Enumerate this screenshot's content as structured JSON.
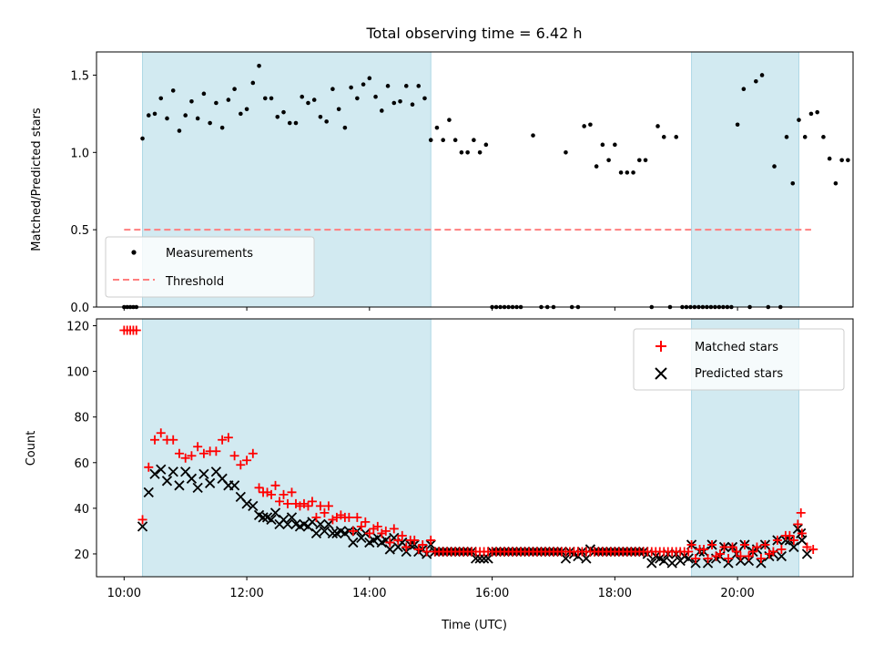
{
  "figure": {
    "title": "Total observing time = 6.42 h"
  },
  "chart_data": [
    {
      "type": "scatter",
      "ylabel": "Matched/Predicted stars",
      "xlabel": "",
      "xlim": [
        "09:33",
        "21:53"
      ],
      "ylim": [
        0,
        1.65
      ],
      "yticks": [
        0.0,
        0.5,
        1.0,
        1.5
      ],
      "ytick_labels": [
        "0.0",
        "0.5",
        "1.0",
        "1.5"
      ],
      "shaded_intervals": [
        [
          "10:18",
          "15:00"
        ],
        [
          "19:15",
          "21:00"
        ]
      ],
      "shade_color": "#add8e6",
      "legend": {
        "position": "lower-left",
        "entries": [
          "Measurements",
          "Threshold"
        ]
      },
      "threshold": {
        "name": "Threshold",
        "value": 0.5,
        "x_start": "10:00",
        "x_end": "21:12",
        "color": "#ff7f7f",
        "style": "dashed"
      },
      "series": [
        {
          "name": "Measurements",
          "marker": "dot",
          "color": "#000000",
          "points": [
            [
              "10:00",
              0
            ],
            [
              "10:03",
              0
            ],
            [
              "10:06",
              0
            ],
            [
              "10:09",
              0
            ],
            [
              "10:12",
              0
            ],
            [
              "10:18",
              1.09
            ],
            [
              "10:24",
              1.24
            ],
            [
              "10:30",
              1.25
            ],
            [
              "10:36",
              1.35
            ],
            [
              "10:42",
              1.22
            ],
            [
              "10:48",
              1.4
            ],
            [
              "10:54",
              1.14
            ],
            [
              "11:00",
              1.24
            ],
            [
              "11:06",
              1.33
            ],
            [
              "11:12",
              1.22
            ],
            [
              "11:18",
              1.38
            ],
            [
              "11:24",
              1.19
            ],
            [
              "11:30",
              1.32
            ],
            [
              "11:36",
              1.16
            ],
            [
              "11:42",
              1.34
            ],
            [
              "11:48",
              1.41
            ],
            [
              "11:54",
              1.25
            ],
            [
              "12:00",
              1.28
            ],
            [
              "12:06",
              1.45
            ],
            [
              "12:12",
              1.56
            ],
            [
              "12:18",
              1.35
            ],
            [
              "12:24",
              1.35
            ],
            [
              "12:30",
              1.23
            ],
            [
              "12:36",
              1.26
            ],
            [
              "12:42",
              1.19
            ],
            [
              "12:48",
              1.19
            ],
            [
              "12:54",
              1.36
            ],
            [
              "13:00",
              1.32
            ],
            [
              "13:06",
              1.34
            ],
            [
              "13:12",
              1.23
            ],
            [
              "13:18",
              1.2
            ],
            [
              "13:24",
              1.41
            ],
            [
              "13:30",
              1.28
            ],
            [
              "13:36",
              1.16
            ],
            [
              "13:42",
              1.42
            ],
            [
              "13:48",
              1.35
            ],
            [
              "13:54",
              1.44
            ],
            [
              "14:00",
              1.48
            ],
            [
              "14:06",
              1.36
            ],
            [
              "14:12",
              1.27
            ],
            [
              "14:18",
              1.43
            ],
            [
              "14:24",
              1.32
            ],
            [
              "14:30",
              1.33
            ],
            [
              "14:36",
              1.43
            ],
            [
              "14:42",
              1.31
            ],
            [
              "14:48",
              1.43
            ],
            [
              "14:54",
              1.35
            ],
            [
              "15:00",
              1.08
            ],
            [
              "15:06",
              1.16
            ],
            [
              "15:12",
              1.08
            ],
            [
              "15:18",
              1.21
            ],
            [
              "15:24",
              1.08
            ],
            [
              "15:30",
              1.0
            ],
            [
              "15:36",
              1.0
            ],
            [
              "15:42",
              1.08
            ],
            [
              "15:48",
              1.0
            ],
            [
              "15:54",
              1.05
            ],
            [
              "16:00",
              0
            ],
            [
              "16:04",
              0
            ],
            [
              "16:08",
              0
            ],
            [
              "16:12",
              0
            ],
            [
              "16:16",
              0
            ],
            [
              "16:20",
              0
            ],
            [
              "16:24",
              0
            ],
            [
              "16:28",
              0
            ],
            [
              "16:40",
              1.11
            ],
            [
              "16:48",
              0
            ],
            [
              "16:54",
              0
            ],
            [
              "17:00",
              0
            ],
            [
              "17:12",
              1.0
            ],
            [
              "17:18",
              0
            ],
            [
              "17:24",
              0
            ],
            [
              "17:30",
              1.17
            ],
            [
              "17:36",
              1.18
            ],
            [
              "17:42",
              0.91
            ],
            [
              "17:48",
              1.05
            ],
            [
              "17:54",
              0.95
            ],
            [
              "18:00",
              1.05
            ],
            [
              "18:06",
              0.87
            ],
            [
              "18:12",
              0.87
            ],
            [
              "18:18",
              0.87
            ],
            [
              "18:24",
              0.95
            ],
            [
              "18:30",
              0.95
            ],
            [
              "18:36",
              0
            ],
            [
              "18:42",
              1.17
            ],
            [
              "18:48",
              1.1
            ],
            [
              "18:54",
              0
            ],
            [
              "19:00",
              1.1
            ],
            [
              "19:06",
              0
            ],
            [
              "19:10",
              0
            ],
            [
              "19:14",
              0
            ],
            [
              "19:18",
              0
            ],
            [
              "19:22",
              0
            ],
            [
              "19:26",
              0
            ],
            [
              "19:30",
              0
            ],
            [
              "19:34",
              0
            ],
            [
              "19:38",
              0
            ],
            [
              "19:42",
              0
            ],
            [
              "19:46",
              0
            ],
            [
              "19:50",
              0
            ],
            [
              "19:54",
              0
            ],
            [
              "20:00",
              1.18
            ],
            [
              "20:06",
              1.41
            ],
            [
              "20:12",
              0
            ],
            [
              "20:18",
              1.46
            ],
            [
              "20:24",
              1.5
            ],
            [
              "20:30",
              0
            ],
            [
              "20:36",
              0.91
            ],
            [
              "20:42",
              0
            ],
            [
              "20:48",
              1.1
            ],
            [
              "20:54",
              0.8
            ],
            [
              "21:00",
              1.21
            ],
            [
              "21:06",
              1.1
            ],
            [
              "21:12",
              1.25
            ],
            [
              "21:18",
              1.26
            ],
            [
              "21:24",
              1.1
            ],
            [
              "21:30",
              0.96
            ],
            [
              "21:36",
              0.8
            ],
            [
              "21:42",
              0.95
            ],
            [
              "21:48",
              0.95
            ]
          ]
        }
      ]
    },
    {
      "type": "scatter",
      "ylabel": "Count",
      "xlabel": "Time (UTC)",
      "xlim": [
        "09:33",
        "21:53"
      ],
      "ylim": [
        10,
        123
      ],
      "yticks": [
        20,
        40,
        60,
        80,
        100,
        120
      ],
      "ytick_labels": [
        "20",
        "40",
        "60",
        "80",
        "100",
        "120"
      ],
      "xticks": [
        "10:00",
        "12:00",
        "14:00",
        "16:00",
        "18:00",
        "20:00"
      ],
      "shaded_intervals": [
        [
          "10:18",
          "15:00"
        ],
        [
          "19:15",
          "21:00"
        ]
      ],
      "shade_color": "#add8e6",
      "legend": {
        "position": "top-right",
        "entries": [
          "Matched stars",
          "Predicted stars"
        ]
      },
      "series": [
        {
          "name": "Matched stars",
          "marker": "plus",
          "color": "#ff0000",
          "points": []
        },
        {
          "name": "Predicted stars",
          "marker": "x",
          "color": "#000000",
          "points": []
        }
      ]
    }
  ]
}
